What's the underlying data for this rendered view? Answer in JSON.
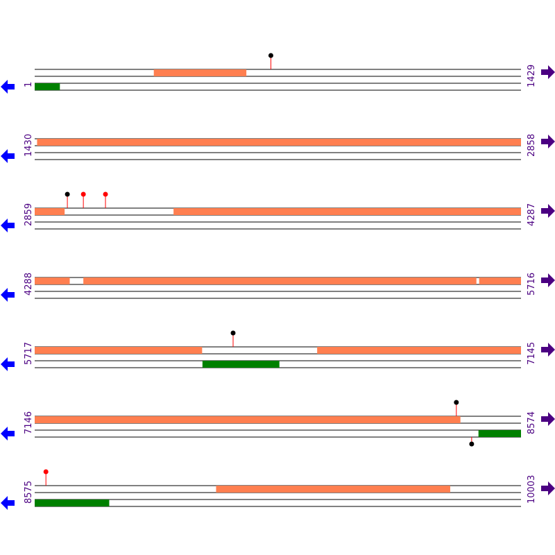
{
  "colors": {
    "forward_feature": "#FF7F50",
    "reverse_feature": "#008000",
    "track_line": "#000000",
    "marker_black": "#000000",
    "marker_red": "#FF0000",
    "stem": "#FF0000",
    "label": "#4B0082",
    "left_arrow": "#0000FF",
    "right_arrow": "#4B0082"
  },
  "icons": {
    "left": "arrow-left-icon",
    "right": "arrow-right-icon"
  },
  "rows": [
    {
      "start_label": "1",
      "end_label": "1429",
      "start": 1,
      "end": 1429,
      "forward": [
        [
          351,
          622
        ]
      ],
      "reverse": [
        [
          1,
          74
        ]
      ],
      "markers": [
        {
          "pos": 695,
          "color": "black",
          "strand": "top"
        }
      ]
    },
    {
      "start_label": "1430",
      "end_label": "2858",
      "start": 1430,
      "end": 2858,
      "forward": [
        [
          1437,
          2858
        ]
      ],
      "reverse": [],
      "markers": []
    },
    {
      "start_label": "2859",
      "end_label": "4287",
      "start": 2859,
      "end": 4287,
      "forward": [
        [
          2859,
          2946
        ],
        [
          3267,
          4287
        ]
      ],
      "reverse": [],
      "markers": [
        {
          "pos": 2955,
          "color": "black",
          "strand": "top"
        },
        {
          "pos": 3002,
          "color": "red",
          "strand": "top"
        },
        {
          "pos": 3067,
          "color": "red",
          "strand": "top"
        }
      ]
    },
    {
      "start_label": "4288",
      "end_label": "5716",
      "start": 4288,
      "end": 5716,
      "forward": [
        [
          4288,
          4390
        ],
        [
          4431,
          5585
        ],
        [
          5594,
          5716
        ]
      ],
      "reverse": [],
      "markers": []
    },
    {
      "start_label": "5717",
      "end_label": "7145",
      "start": 5717,
      "end": 7145,
      "forward": [
        [
          5717,
          6208
        ],
        [
          6547,
          7145
        ]
      ],
      "reverse": [
        [
          6210,
          6435
        ]
      ],
      "markers": [
        {
          "pos": 6300,
          "color": "black",
          "strand": "top"
        }
      ]
    },
    {
      "start_label": "7146",
      "end_label": "8574",
      "start": 7146,
      "end": 8574,
      "forward": [
        [
          7146,
          8396
        ]
      ],
      "reverse": [
        [
          8450,
          8574
        ]
      ],
      "markers": [
        {
          "pos": 8385,
          "color": "black",
          "strand": "top"
        },
        {
          "pos": 8430,
          "color": "black",
          "strand": "bottom"
        }
      ]
    },
    {
      "start_label": "8575",
      "end_label": "10003",
      "start": 8575,
      "end": 10003,
      "forward": [
        [
          9108,
          9795
        ]
      ],
      "reverse": [
        [
          8575,
          8793
        ]
      ],
      "markers": [
        {
          "pos": 8608,
          "color": "red",
          "strand": "top"
        }
      ]
    }
  ]
}
